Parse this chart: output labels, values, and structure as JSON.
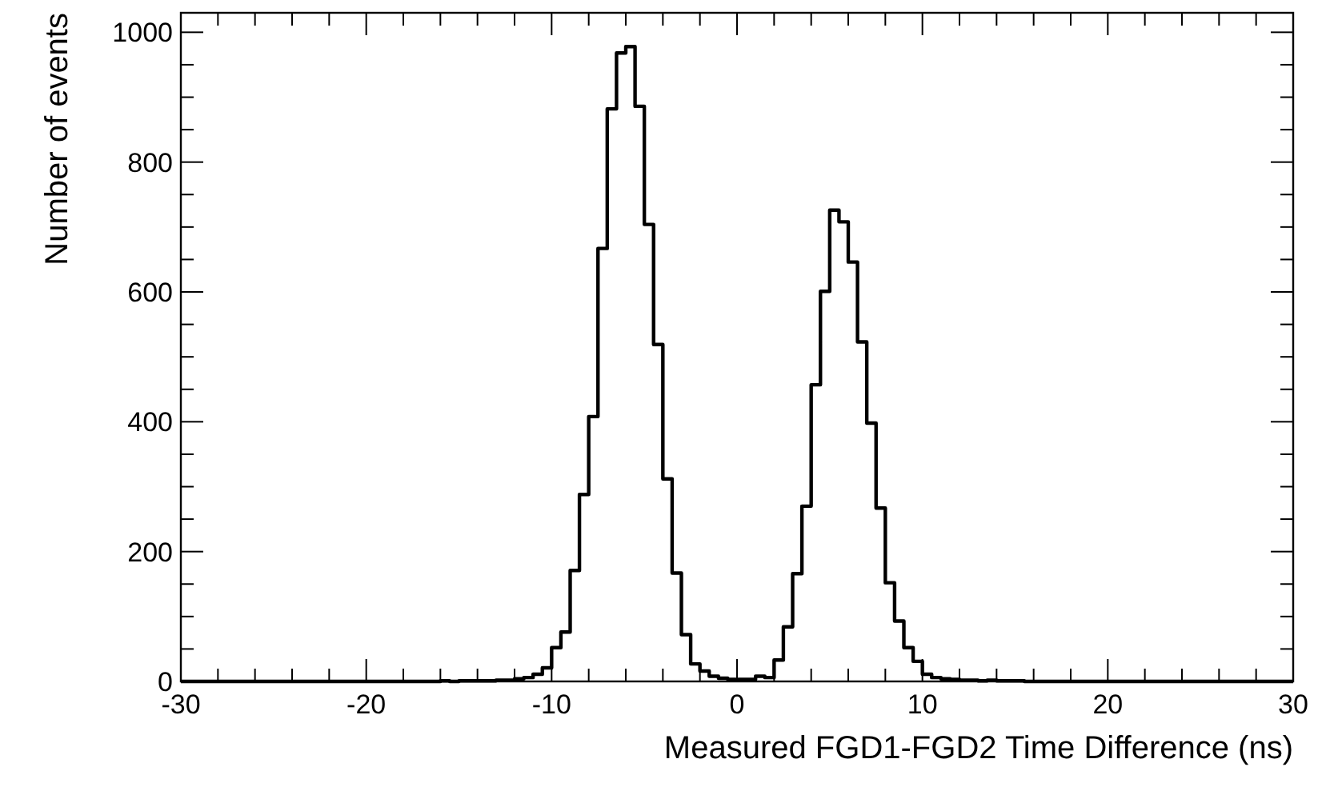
{
  "chart_data": {
    "type": "histogram",
    "xlabel": "Measured FGD1-FGD2 Time Difference (ns)",
    "ylabel": "Number of events",
    "color": "#000000",
    "bins": [
      -30,
      -29.5,
      -29,
      -28.5,
      -28,
      -27.5,
      -27,
      -26.5,
      -26,
      -25.5,
      -25,
      -24.5,
      -24,
      -23.5,
      -23,
      -22.5,
      -22,
      -21.5,
      -21,
      -20.5,
      -20,
      -19.5,
      -19,
      -18.5,
      -18,
      -17.5,
      -17,
      -16.5,
      -16,
      -15.5,
      -15,
      -14.5,
      -14,
      -13.5,
      -13,
      -12.5,
      -12,
      -11.5,
      -11,
      -10.5,
      -10,
      -9.5,
      -9,
      -8.5,
      -8,
      -7.5,
      -7,
      -6.5,
      -6,
      -5.5,
      -5,
      -4.5,
      -4,
      -3.5,
      -3,
      -2.5,
      -2,
      -1.5,
      -1,
      -0.5,
      0,
      0.5,
      1,
      1.5,
      2,
      2.5,
      3,
      3.5,
      4,
      4.5,
      5,
      5.5,
      6,
      6.5,
      7,
      7.5,
      8,
      8.5,
      9,
      9.5,
      10,
      10.5,
      11,
      11.5,
      12,
      12.5,
      13,
      13.5,
      14,
      14.5,
      15,
      15.5,
      16,
      16.5,
      17,
      17.5,
      18,
      18.5,
      19,
      19.5,
      20,
      20.5,
      21,
      21.5,
      22,
      22.5,
      23,
      23.5,
      24,
      24.5,
      25,
      25.5,
      26,
      26.5,
      27,
      27.5,
      28,
      28.5,
      29,
      29.5,
      30
    ],
    "values": [
      0,
      0,
      0,
      0,
      0,
      0,
      0,
      0,
      0,
      0,
      0,
      0,
      0,
      0,
      0,
      0,
      0,
      0,
      0,
      0,
      0,
      0,
      0,
      0,
      0,
      0,
      0,
      0,
      1,
      0,
      1,
      1,
      1,
      1,
      2,
      2,
      4,
      6,
      11,
      21,
      52,
      76,
      171,
      288,
      408,
      667,
      882,
      968,
      978,
      886,
      704,
      519,
      312,
      167,
      72,
      27,
      16,
      8,
      5,
      3,
      3,
      3,
      8,
      6,
      33,
      84,
      166,
      270,
      457,
      601,
      726,
      708,
      646,
      523,
      398,
      267,
      152,
      93,
      52,
      31,
      11,
      6,
      4,
      3,
      2,
      2,
      1,
      2,
      1,
      1,
      1,
      0,
      0,
      0,
      0,
      0,
      0,
      0,
      0,
      0,
      0,
      0,
      0,
      0,
      0,
      0,
      0,
      0,
      0,
      0,
      0,
      0,
      0,
      0,
      0,
      0,
      0,
      0,
      0,
      0
    ],
    "xlim": [
      -30,
      30
    ],
    "xticks": [
      -30,
      {
        "value": -28,
        "label": null
      },
      {
        "value": -26,
        "label": null
      },
      {
        "value": -24,
        "label": null
      },
      {
        "value": -22,
        "label": null
      },
      -20,
      {
        "value": -18,
        "label": null
      },
      {
        "value": -16,
        "label": null
      },
      {
        "value": -14,
        "label": null
      },
      {
        "value": -12,
        "label": null
      },
      -10,
      {
        "value": -8,
        "label": null
      },
      {
        "value": -6,
        "label": null
      },
      {
        "value": -4,
        "label": null
      },
      {
        "value": -2,
        "label": null
      },
      0,
      {
        "value": 2,
        "label": null
      },
      {
        "value": 4,
        "label": null
      },
      {
        "value": 6,
        "label": null
      },
      {
        "value": 8,
        "label": null
      },
      10,
      {
        "value": 12,
        "label": null
      },
      {
        "value": 14,
        "label": null
      },
      {
        "value": 16,
        "label": null
      },
      {
        "value": 18,
        "label": null
      },
      20,
      {
        "value": 22,
        "label": null
      },
      {
        "value": 24,
        "label": null
      },
      {
        "value": 26,
        "label": null
      },
      {
        "value": 28,
        "label": null
      },
      30
    ],
    "ylim": [
      0,
      1030
    ],
    "yticks": [
      0,
      {
        "value": 50,
        "label": null
      },
      {
        "value": 100,
        "label": null
      },
      {
        "value": 150,
        "label": null
      },
      200,
      {
        "value": 250,
        "label": null
      },
      {
        "value": 300,
        "label": null
      },
      {
        "value": 350,
        "label": null
      },
      400,
      {
        "value": 450,
        "label": null
      },
      {
        "value": 500,
        "label": null
      },
      {
        "value": 550,
        "label": null
      },
      600,
      {
        "value": 650,
        "label": null
      },
      {
        "value": 700,
        "label": null
      },
      {
        "value": 750,
        "label": null
      },
      800,
      {
        "value": 850,
        "label": null
      },
      {
        "value": 900,
        "label": null
      },
      {
        "value": 950,
        "label": null
      },
      1000
    ]
  }
}
